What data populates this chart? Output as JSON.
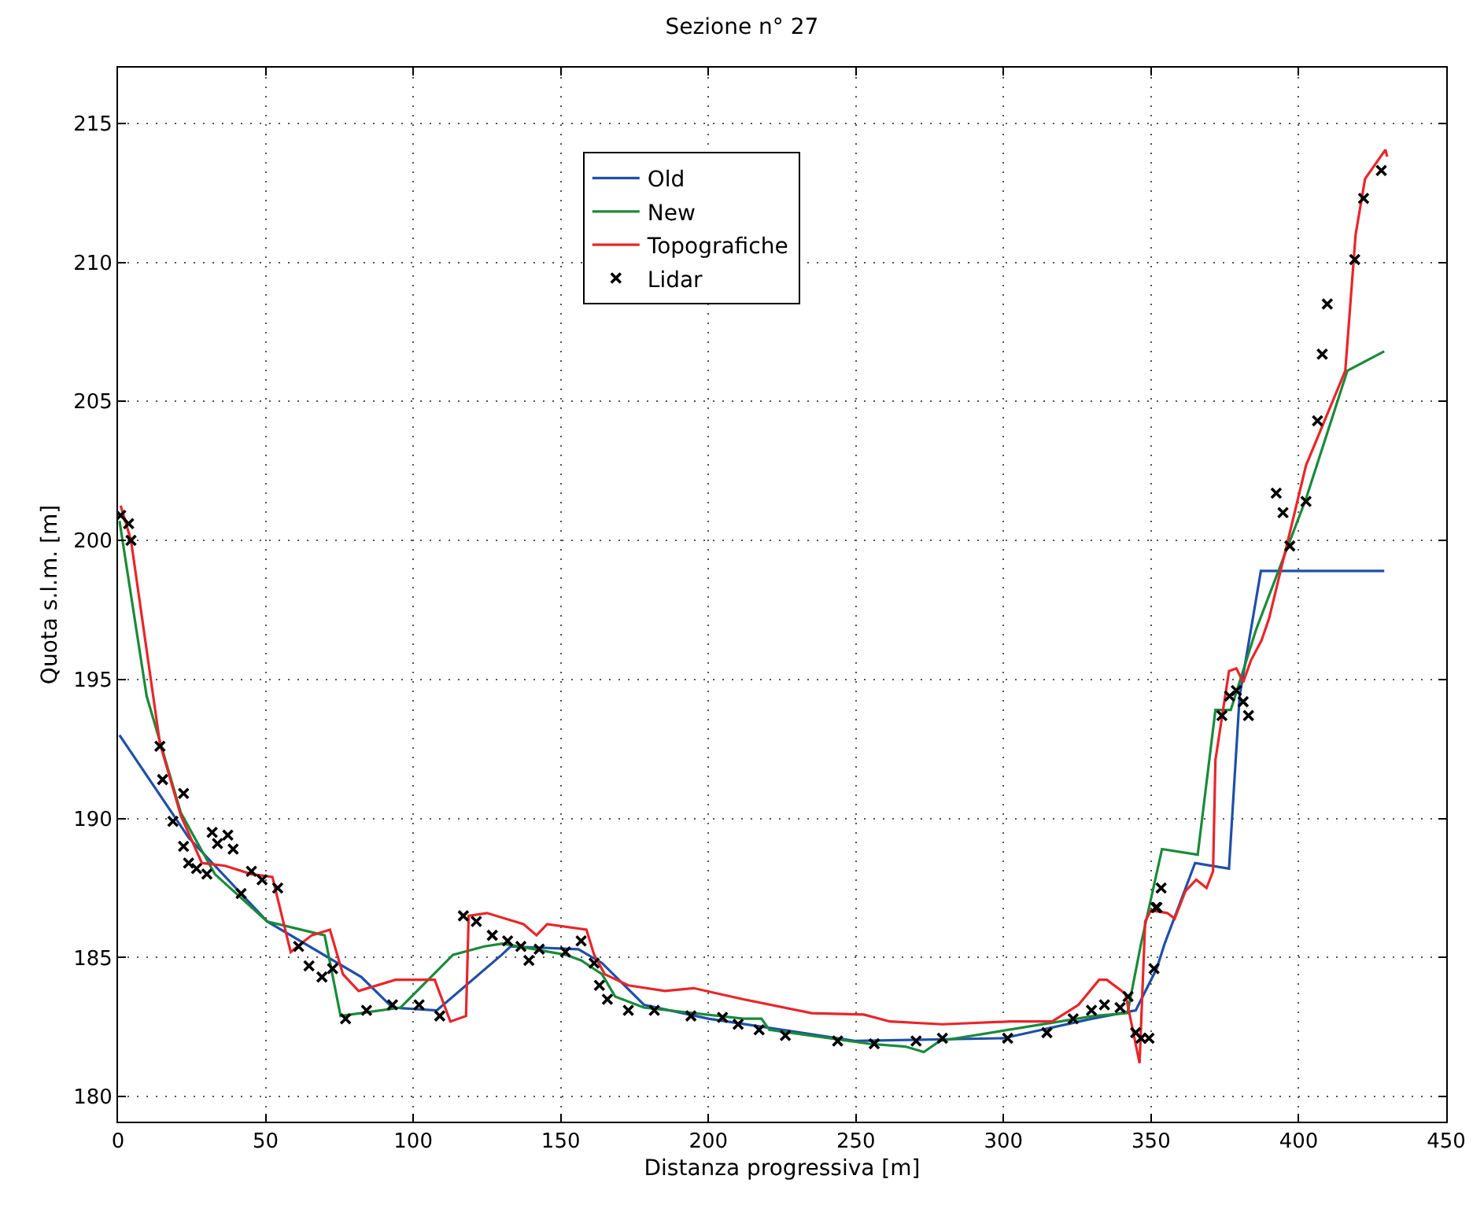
{
  "chart_data": {
    "type": "line",
    "title": "Sezione n° 27",
    "xlabel": "Distanza progressiva [m]",
    "ylabel": "Quota s.l.m. [m]",
    "xlim": [
      0,
      450
    ],
    "ylim": [
      179.1,
      217
    ],
    "xticks": [
      0,
      50,
      100,
      150,
      200,
      250,
      300,
      350,
      400,
      450
    ],
    "yticks": [
      180,
      185,
      190,
      195,
      200,
      205,
      210,
      215
    ],
    "grid": true,
    "legend": "top",
    "line_style": "solid",
    "series": [
      {
        "name": "Old",
        "color": "#1f4fa8",
        "marker": "none",
        "x": [
          0.5,
          24,
          50.5,
          82.4,
          93,
          108,
          130,
          133,
          156,
          164,
          178.2,
          200,
          250,
          300,
          330,
          342.2,
          344.8,
          351.9,
          354.6,
          364.9,
          376.4,
          380,
          387.2,
          429
        ],
        "values": [
          193,
          189.3,
          186.3,
          184.3,
          183.2,
          183.1,
          185.1,
          185.4,
          185.3,
          184.8,
          183.3,
          182.8,
          182,
          182.1,
          182.8,
          183.05,
          183.1,
          184.6,
          185.5,
          188.4,
          188.2,
          194.4,
          198.9,
          198.9
        ]
      },
      {
        "name": "New",
        "color": "#1a8a3a",
        "marker": "none",
        "x": [
          0.5,
          9.7,
          21.3,
          32.8,
          50.5,
          70,
          75.4,
          95.7,
          113.5,
          124.1,
          130.3,
          151.6,
          156.9,
          164,
          168.4,
          178.2,
          211.9,
          218,
          220.7,
          254.4,
          266.8,
          273,
          278.4,
          330.7,
          342,
          346.6,
          353.7,
          365.8,
          371.8,
          377,
          385.6,
          402.5,
          416.5,
          429
        ],
        "values": [
          200.7,
          194.4,
          190.2,
          188,
          186.3,
          185.8,
          182.9,
          183.2,
          185.1,
          185.4,
          185.5,
          185.1,
          184.9,
          184.4,
          183.6,
          183.2,
          182.8,
          182.8,
          182.4,
          181.9,
          181.8,
          181.6,
          182,
          182.9,
          183,
          185.5,
          188.9,
          188.7,
          193.9,
          193.9,
          196.8,
          201.5,
          206.1,
          206.8
        ]
      },
      {
        "name": "Topografiche",
        "color": "#e8262a",
        "marker": "none",
        "x": [
          0.9,
          4.4,
          14.2,
          21.3,
          28.4,
          36.3,
          45.2,
          52.3,
          58.5,
          65.6,
          71.8,
          76.2,
          81.5,
          94,
          107.3,
          112.6,
          117.9,
          118.8,
          125,
          137.4,
          141.8,
          145.4,
          158.7,
          161.3,
          164.9,
          172.9,
          185.3,
          195,
          211.9,
          235,
          252.7,
          261.5,
          279.3,
          302.3,
          316.5,
          325.4,
          332.4,
          335,
          341.3,
          346.1,
          348,
          350,
          355.5,
          358,
          361.7,
          365.3,
          368.8,
          371,
          371.8,
          376.4,
          378.9,
          381.2,
          383.9,
          387.4,
          390,
          402.5,
          415.8,
          419.3,
          422.5,
          429.4,
          430
        ],
        "values": [
          201.25,
          200,
          192.7,
          190.1,
          188.4,
          188.3,
          188,
          187.9,
          185.2,
          185.8,
          186,
          184.4,
          183.8,
          184.2,
          184.2,
          182.7,
          182.9,
          186.5,
          186.6,
          186.2,
          185.8,
          186.2,
          186,
          185.1,
          184.4,
          184,
          183.8,
          183.9,
          183.5,
          183,
          182.95,
          182.7,
          182.6,
          182.7,
          182.7,
          183.3,
          184.2,
          184.2,
          183.7,
          181.2,
          186.3,
          186.7,
          186.6,
          186.4,
          187.4,
          187.8,
          187.5,
          188.1,
          192.1,
          195.3,
          195.4,
          194.9,
          195.7,
          196.4,
          197.2,
          202.7,
          206.1,
          211,
          213,
          214.05,
          213.8
        ]
      },
      {
        "name": "Lidar",
        "type": "scatter",
        "color": "#000000",
        "marker": "cross",
        "x": [
          0.9,
          3.6,
          4.4,
          14.2,
          15.1,
          18.6,
          22.2,
          22.2,
          23.9,
          26.6,
          30.1,
          31.9,
          33.7,
          37.2,
          39,
          41.7,
          45.2,
          48.8,
          54.1,
          61.2,
          64.7,
          69.1,
          72.7,
          77.1,
          84.2,
          93,
          102,
          109,
          117,
          121.4,
          126.8,
          132,
          136.5,
          139.2,
          142.7,
          151.6,
          156.9,
          161.3,
          163.1,
          165.8,
          172.9,
          181.7,
          194.1,
          204.8,
          210.1,
          217.2,
          226.1,
          243.8,
          256.2,
          270.4,
          279.3,
          301.4,
          314.7,
          323.6,
          329.8,
          334.2,
          339.5,
          342.2,
          344.8,
          346.6,
          349.3,
          351,
          351.6,
          352,
          353.4,
          374,
          376.6,
          378.9,
          381.2,
          383,
          392.4,
          394.7,
          397,
          402.5,
          406.4,
          408,
          409.7,
          419,
          422,
          428
        ],
        "values": [
          200.9,
          200.6,
          200,
          192.6,
          191.4,
          189.9,
          190.9,
          189,
          188.4,
          188.2,
          188,
          189.5,
          189.1,
          189.4,
          188.9,
          187.3,
          188.1,
          187.8,
          187.5,
          185.4,
          184.7,
          184.3,
          184.6,
          182.8,
          183.1,
          183.3,
          183.3,
          182.9,
          186.5,
          186.3,
          185.8,
          185.6,
          185.4,
          184.9,
          185.3,
          185.2,
          185.6,
          184.8,
          184,
          183.5,
          183.1,
          183.1,
          182.9,
          182.85,
          182.6,
          182.4,
          182.2,
          182,
          181.9,
          182,
          182.1,
          182.1,
          182.3,
          182.8,
          183.1,
          183.3,
          183.2,
          183.6,
          182.3,
          182.1,
          182.1,
          184.6,
          186.8,
          186.8,
          187.5,
          193.7,
          194.4,
          194.6,
          194.2,
          193.7,
          201.7,
          201,
          199.8,
          201.4,
          204.3,
          206.7,
          208.5,
          210.1,
          212.3,
          213.3
        ]
      }
    ]
  }
}
